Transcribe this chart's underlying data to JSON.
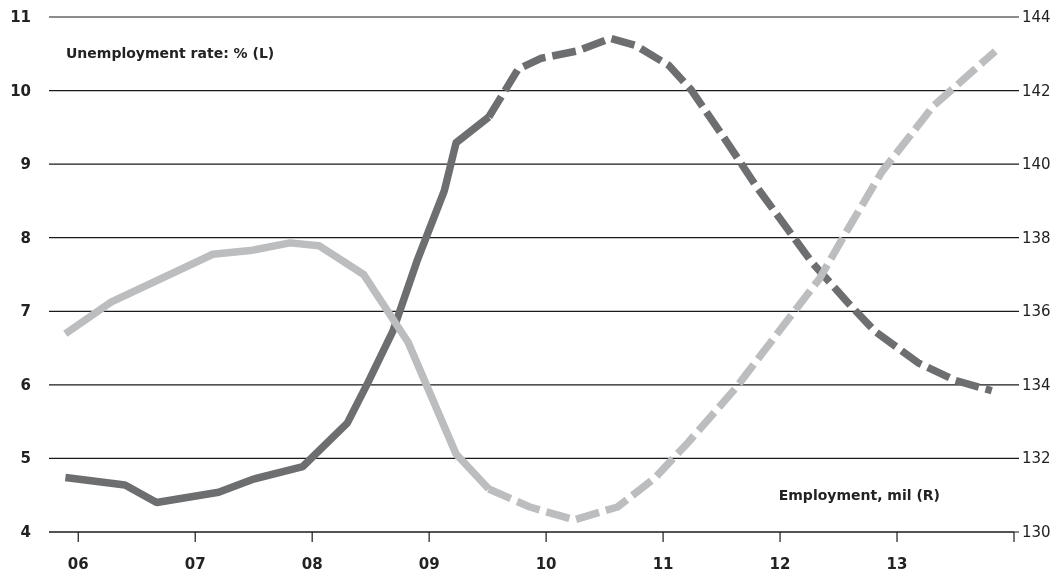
{
  "chart_data": {
    "type": "line",
    "xlim": [
      2005.75,
      2014
    ],
    "xticks": [
      {
        "value": 2006,
        "label": "06"
      },
      {
        "value": 2007,
        "label": "07"
      },
      {
        "value": 2008,
        "label": "08"
      },
      {
        "value": 2009,
        "label": "09"
      },
      {
        "value": 2010,
        "label": "10"
      },
      {
        "value": 2011,
        "label": "11"
      },
      {
        "value": 2012,
        "label": "12"
      },
      {
        "value": 2013,
        "label": "13"
      },
      {
        "value": 2014,
        "label": null
      }
    ],
    "ylim": [
      4,
      11
    ],
    "yticks": [
      4,
      5,
      6,
      7,
      8,
      9,
      10,
      11
    ],
    "y2lim": [
      130,
      144
    ],
    "y2ticks": [
      130,
      132,
      134,
      136,
      138,
      140,
      142,
      144
    ],
    "grid": "y",
    "annotations": [
      "Unemployment rate: % (L)",
      "Employment, mil (R)"
    ],
    "series": [
      {
        "color": "#6d6e70",
        "line_style": "solid",
        "x": [
          2005.89,
          2006.4,
          2006.67,
          2007.2,
          2007.5,
          2007.92,
          2008.3,
          2008.47,
          2008.69,
          2008.9,
          2009.13,
          2009.23,
          2009.51
        ],
        "values": [
          4.74,
          4.64,
          4.4,
          4.54,
          4.72,
          4.89,
          5.48,
          6.01,
          6.73,
          7.7,
          8.64,
          9.29,
          9.64
        ]
      },
      {
        "color": "#6d6e70",
        "line_style": "dashed",
        "x": [
          2009.51,
          2009.76,
          2009.96,
          2010.27,
          2010.55,
          2010.77,
          2011.05,
          2011.24,
          2011.55,
          2011.8,
          2012.05,
          2012.27,
          2012.59,
          2012.81,
          2013.18,
          2013.5,
          2013.81
        ],
        "values": [
          9.64,
          10.29,
          10.44,
          10.54,
          10.71,
          10.61,
          10.34,
          10.01,
          9.29,
          8.69,
          8.15,
          7.67,
          7.1,
          6.73,
          6.3,
          6.06,
          5.92
        ]
      },
      {
        "color": "#bcbdbf",
        "line_style": "solid",
        "axis": "y2",
        "x": [
          2005.89,
          2006.28,
          2007.15,
          2007.47,
          2007.81,
          2008.06,
          2008.44,
          2008.82,
          2009.23,
          2009.51
        ],
        "values": [
          135.39,
          136.25,
          137.55,
          137.65,
          137.86,
          137.78,
          137,
          135.16,
          132.12,
          131.17
        ]
      },
      {
        "color": "#bcbdbf",
        "line_style": "dashed",
        "axis": "y2",
        "x": [
          2009.51,
          2009.86,
          2010.24,
          2010.61,
          2010.93,
          2011.21,
          2011.62,
          2012.05,
          2012.34,
          2012.59,
          2012.87,
          2013.31,
          2013.84
        ],
        "values": [
          131.17,
          130.68,
          130.33,
          130.68,
          131.47,
          132.42,
          133.91,
          135.7,
          136.9,
          138.29,
          139.79,
          141.58,
          143.07
        ]
      }
    ]
  }
}
